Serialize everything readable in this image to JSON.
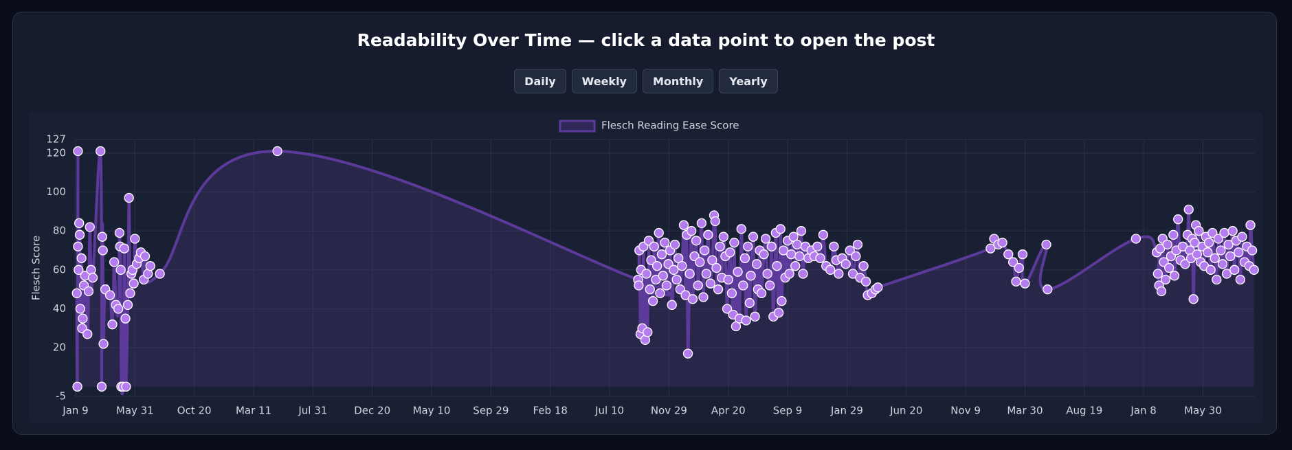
{
  "title": "Readability Over Time — click a data point to open the post",
  "buttons": [
    "Daily",
    "Weekly",
    "Monthly",
    "Yearly"
  ],
  "chart_data": {
    "type": "line",
    "y_label": "Flesch Score",
    "ylim": [
      -5,
      127
    ],
    "yticks": [
      -5,
      20,
      40,
      60,
      80,
      100,
      120,
      127
    ],
    "xlim": [
      0,
      19.875
    ],
    "xticks": [
      {
        "value": 0,
        "label": "Jan 9"
      },
      {
        "value": 1,
        "label": "May 31"
      },
      {
        "value": 2,
        "label": "Oct 20"
      },
      {
        "value": 3,
        "label": "Mar 11"
      },
      {
        "value": 4,
        "label": "Jul 31"
      },
      {
        "value": 5,
        "label": "Dec 20"
      },
      {
        "value": 6,
        "label": "May 10"
      },
      {
        "value": 7,
        "label": "Sep 29"
      },
      {
        "value": 8,
        "label": "Feb 18"
      },
      {
        "value": 9,
        "label": "Jul 10"
      },
      {
        "value": 10,
        "label": "Nov 29"
      },
      {
        "value": 11,
        "label": "Apr 20"
      },
      {
        "value": 12,
        "label": "Sep 9"
      },
      {
        "value": 13,
        "label": "Jan 29"
      },
      {
        "value": 14,
        "label": "Jun 20"
      },
      {
        "value": 15,
        "label": "Nov 9"
      },
      {
        "value": 16,
        "label": "Mar 30"
      },
      {
        "value": 17,
        "label": "Aug 19"
      },
      {
        "value": 18,
        "label": "Jan 8"
      },
      {
        "value": 19,
        "label": "May 30"
      }
    ],
    "grid": true,
    "legend": "top",
    "x": [
      0.02,
      0.03,
      0.04,
      0.04,
      0.05,
      0.06,
      0.07,
      0.08,
      0.1,
      0.11,
      0.12,
      0.14,
      0.16,
      0.2,
      0.22,
      0.24,
      0.26,
      0.29,
      0.42,
      0.44,
      0.45,
      0.46,
      0.47,
      0.5,
      0.58,
      0.62,
      0.65,
      0.68,
      0.72,
      0.74,
      0.75,
      0.76,
      0.77,
      0.8,
      0.82,
      0.84,
      0.85,
      0.88,
      0.9,
      0.92,
      0.94,
      0.96,
      0.98,
      1.0,
      1.03,
      1.07,
      1.1,
      1.15,
      1.17,
      1.22,
      1.26,
      1.42,
      3.4,
      9.48,
      9.49,
      9.5,
      9.52,
      9.53,
      9.55,
      9.57,
      9.6,
      9.62,
      9.64,
      9.66,
      9.68,
      9.7,
      9.73,
      9.75,
      9.78,
      9.8,
      9.83,
      9.85,
      9.88,
      9.9,
      9.93,
      9.96,
      9.99,
      10.02,
      10.05,
      10.08,
      10.1,
      10.13,
      10.16,
      10.19,
      10.22,
      10.25,
      10.28,
      10.3,
      10.32,
      10.35,
      10.38,
      10.4,
      10.43,
      10.46,
      10.49,
      10.52,
      10.55,
      10.58,
      10.6,
      10.63,
      10.66,
      10.7,
      10.73,
      10.76,
      10.78,
      10.8,
      10.83,
      10.86,
      10.89,
      10.92,
      10.95,
      10.98,
      11.0,
      11.03,
      11.06,
      11.08,
      11.1,
      11.13,
      11.16,
      11.19,
      11.22,
      11.25,
      11.28,
      11.3,
      11.33,
      11.36,
      11.38,
      11.42,
      11.45,
      11.48,
      11.5,
      11.53,
      11.56,
      11.6,
      11.63,
      11.66,
      11.7,
      11.73,
      11.76,
      11.8,
      11.82,
      11.85,
      11.88,
      11.9,
      11.93,
      11.96,
      12.0,
      12.03,
      12.06,
      12.1,
      12.13,
      12.16,
      12.2,
      12.23,
      12.26,
      12.3,
      12.35,
      12.4,
      12.45,
      12.5,
      12.55,
      12.6,
      12.65,
      12.72,
      12.78,
      12.82,
      12.86,
      12.92,
      12.98,
      13.05,
      13.1,
      13.15,
      13.18,
      13.22,
      13.28,
      13.32,
      13.35,
      13.42,
      13.48,
      13.52,
      15.42,
      15.48,
      15.55,
      15.62,
      15.72,
      15.8,
      15.85,
      15.9,
      15.96,
      16.0,
      16.36,
      16.38,
      17.87,
      18.22,
      18.24,
      18.26,
      18.28,
      18.3,
      18.32,
      18.34,
      18.37,
      18.4,
      18.43,
      18.46,
      18.5,
      18.52,
      18.55,
      18.58,
      18.62,
      18.66,
      18.7,
      18.74,
      18.76,
      18.78,
      18.8,
      18.82,
      18.84,
      18.86,
      18.88,
      18.9,
      18.93,
      18.96,
      18.99,
      19.02,
      19.05,
      19.08,
      19.1,
      19.13,
      19.16,
      19.2,
      19.23,
      19.26,
      19.3,
      19.33,
      19.36,
      19.4,
      19.43,
      19.46,
      19.5,
      19.53,
      19.56,
      19.6,
      19.63,
      19.66,
      19.7,
      19.74,
      19.78,
      19.8,
      19.83,
      19.86
    ],
    "series": [
      {
        "name": "Flesch Reading Ease Score",
        "color": "#5b3a9a",
        "marker_color": "#b57cf0",
        "values": [
          48,
          0,
          121,
          72,
          60,
          84,
          78,
          40,
          66,
          30,
          35,
          52,
          57,
          27,
          49,
          82,
          60,
          56,
          121,
          0,
          77,
          70,
          22,
          50,
          47,
          32,
          64,
          42,
          40,
          79,
          72,
          60,
          0,
          0,
          71,
          35,
          0,
          42,
          97,
          48,
          58,
          60,
          53,
          76,
          63,
          66,
          69,
          55,
          67,
          58,
          62,
          58,
          121,
          55,
          52,
          70,
          27,
          60,
          30,
          72,
          24,
          58,
          28,
          75,
          50,
          65,
          44,
          72,
          55,
          62,
          79,
          48,
          68,
          57,
          74,
          52,
          63,
          70,
          42,
          60,
          73,
          55,
          66,
          50,
          62,
          83,
          47,
          78,
          17,
          58,
          80,
          45,
          67,
          75,
          52,
          64,
          84,
          46,
          70,
          58,
          78,
          53,
          65,
          88,
          85,
          61,
          50,
          72,
          56,
          77,
          67,
          40,
          55,
          69,
          48,
          37,
          74,
          31,
          59,
          35,
          81,
          52,
          66,
          34,
          72,
          43,
          57,
          77,
          36,
          63,
          50,
          70,
          48,
          68,
          76,
          58,
          52,
          72,
          36,
          79,
          62,
          38,
          81,
          44,
          70,
          56,
          75,
          58,
          68,
          77,
          62,
          73,
          67,
          80,
          58,
          72,
          66,
          70,
          67,
          72,
          66,
          78,
          62,
          60,
          72,
          65,
          58,
          66,
          63,
          70,
          58,
          67,
          73,
          56,
          62,
          54,
          47,
          48,
          50,
          51,
          71,
          76,
          73,
          74,
          68,
          64,
          54,
          61,
          68,
          53,
          73,
          50,
          76,
          69,
          58,
          52,
          71,
          49,
          76,
          64,
          55,
          73,
          61,
          67,
          78,
          57,
          70,
          86,
          65,
          72,
          63,
          78,
          91,
          70,
          66,
          76,
          45,
          74,
          83,
          68,
          80,
          64,
          72,
          62,
          77,
          69,
          74,
          60,
          79,
          66,
          55,
          76,
          70,
          63,
          79,
          58,
          73,
          67,
          80,
          60,
          75,
          69,
          55,
          77,
          64,
          72,
          62,
          83,
          70,
          60
        ]
      }
    ]
  }
}
